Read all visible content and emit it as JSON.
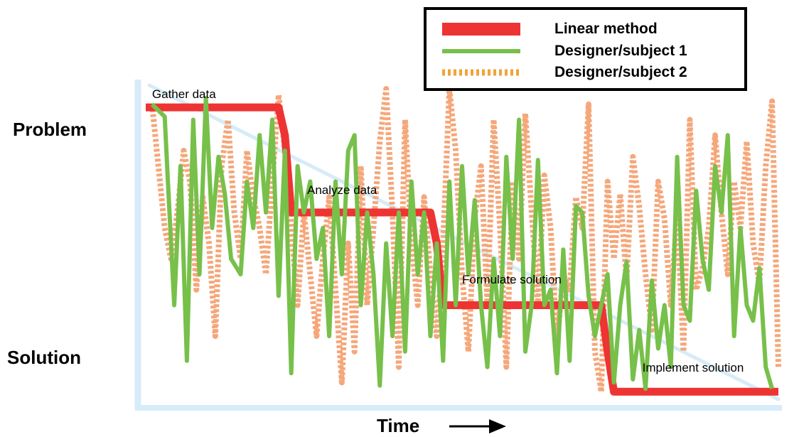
{
  "chart_data": {
    "type": "line",
    "xlabel": "Time",
    "ylabel_top": "Problem",
    "ylabel_bottom": "Solution",
    "xlim": [
      0,
      100
    ],
    "ylim": [
      0,
      100
    ],
    "legend": {
      "placement": "top-right",
      "entries": [
        "Linear method",
        "Designer/subject 1",
        "Designer/subject 2"
      ]
    },
    "colors": {
      "axis": "#d6ecf8",
      "linear": "#ee3333",
      "subject1": "#77c04a",
      "subject2": "#f5a77a",
      "legend_subject2": "#f2a33a"
    },
    "annotations": [
      {
        "text": "Gather data",
        "x": 1,
        "y": 97
      },
      {
        "text": "Analyze data",
        "x": 25.5,
        "y": 66
      },
      {
        "text": "Formulate solution",
        "x": 50,
        "y": 37
      },
      {
        "text": "Implement solution",
        "x": 78.5,
        "y": 8.5
      }
    ],
    "series": [
      {
        "name": "Linear method",
        "style": "solid-thick",
        "x": [
          0,
          21,
          22,
          23,
          45,
          46,
          47,
          72,
          73,
          74,
          100
        ],
        "y": [
          94,
          94,
          85,
          60,
          60,
          50,
          30,
          30,
          15,
          2,
          2
        ]
      },
      {
        "name": "Designer/subject 1",
        "style": "solid",
        "x": [
          1,
          3,
          3.5,
          4.5,
          5.5,
          6.5,
          7.5,
          8.5,
          9.5,
          10.5,
          11.5,
          12.5,
          13.5,
          15,
          16,
          17,
          18,
          19,
          20,
          21,
          22,
          23,
          24,
          25,
          26,
          27,
          28,
          29,
          30,
          31,
          32,
          33,
          34,
          35,
          36,
          37,
          38,
          39,
          40,
          41,
          42,
          43,
          44,
          45,
          46,
          47,
          48,
          49,
          50,
          51,
          52,
          53,
          54,
          55,
          56,
          57,
          58,
          59,
          60,
          61,
          62,
          63,
          64,
          65,
          66,
          67,
          68,
          69,
          70,
          71,
          72,
          73,
          74,
          75,
          76,
          77,
          78,
          79,
          80,
          81,
          82,
          83,
          84,
          85,
          86,
          87,
          88,
          89,
          90,
          91,
          92,
          93,
          94,
          95,
          96,
          97,
          98,
          99
        ],
        "y": [
          95,
          91,
          70,
          30,
          75,
          12,
          90,
          40,
          97,
          55,
          78,
          66,
          45,
          40,
          70,
          55,
          85,
          60,
          90,
          33,
          80,
          8,
          75,
          60,
          70,
          45,
          55,
          20,
          70,
          40,
          80,
          85,
          30,
          60,
          40,
          4,
          50,
          20,
          60,
          15,
          70,
          40,
          60,
          20,
          50,
          12,
          70,
          30,
          75,
          40,
          64,
          30,
          10,
          45,
          20,
          78,
          45,
          90,
          15,
          30,
          77,
          30,
          35,
          8,
          48,
          12,
          62,
          60,
          33,
          20,
          30,
          40,
          5,
          30,
          44,
          6,
          22,
          3,
          38,
          16,
          30,
          10,
          78,
          30,
          25,
          67,
          45,
          35,
          75,
          60,
          85,
          20,
          55,
          30,
          25,
          42,
          10,
          3
        ]
      },
      {
        "name": "Designer/subject 2",
        "style": "dotted",
        "x": [
          1,
          2,
          3,
          4,
          5,
          6,
          7,
          8,
          9,
          10,
          11,
          12,
          13,
          14,
          15,
          16,
          17,
          18,
          19,
          20,
          21,
          22,
          23,
          24,
          25,
          26,
          27,
          28,
          29,
          30,
          31,
          32,
          33,
          34,
          35,
          36,
          37,
          38,
          39,
          40,
          41,
          42,
          43,
          44,
          45,
          46,
          47,
          48,
          49,
          50,
          51,
          52,
          53,
          54,
          55,
          56,
          57,
          58,
          59,
          60,
          61,
          62,
          63,
          64,
          65,
          66,
          67,
          68,
          69,
          70,
          71,
          72,
          73,
          74,
          75,
          76,
          77,
          78,
          79,
          80,
          81,
          82,
          83,
          84,
          85,
          86,
          87,
          88,
          89,
          90,
          91,
          92,
          93,
          94,
          95,
          96,
          97,
          98,
          99,
          100
        ],
        "y": [
          95,
          75,
          55,
          45,
          60,
          80,
          70,
          35,
          65,
          50,
          20,
          75,
          90,
          60,
          45,
          80,
          65,
          55,
          40,
          70,
          98,
          80,
          55,
          30,
          60,
          40,
          20,
          45,
          65,
          35,
          5,
          50,
          15,
          75,
          30,
          55,
          83,
          100,
          60,
          10,
          90,
          50,
          30,
          65,
          40,
          20,
          50,
          100,
          80,
          40,
          15,
          58,
          75,
          30,
          90,
          55,
          10,
          70,
          45,
          92,
          60,
          30,
          72,
          55,
          18,
          40,
          35,
          65,
          55,
          95,
          15,
          2,
          70,
          45,
          66,
          38,
          78,
          62,
          40,
          22,
          70,
          58,
          30,
          60,
          15,
          90,
          35,
          42,
          55,
          85,
          60,
          40,
          70,
          55,
          83,
          50,
          37,
          75,
          96,
          10
        ]
      }
    ]
  }
}
